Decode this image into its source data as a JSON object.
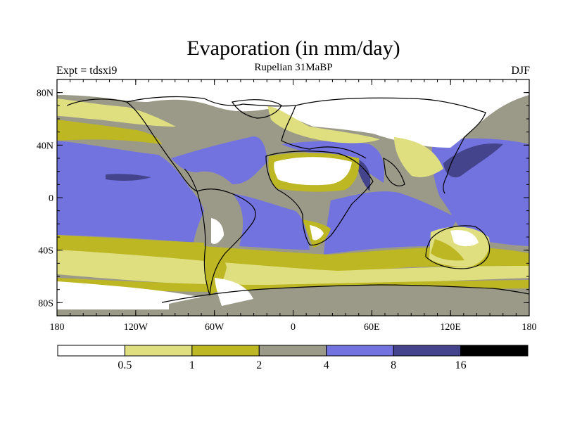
{
  "header": {
    "title": "Evaporation (in mm/day)",
    "subtitle": "Rupelian  31MaBP",
    "experiment": "Expt = tdsxi9",
    "season": "DJF"
  },
  "map": {
    "variable": "evaporation",
    "units": "mm/day",
    "lat_ticks": [
      "80N",
      "40N",
      "0",
      "40S",
      "80S"
    ],
    "lat_values": [
      80,
      40,
      0,
      -40,
      -80
    ],
    "lon_ticks": [
      "180",
      "120W",
      "60W",
      "0",
      "60E",
      "120E",
      "180"
    ],
    "lon_values": [
      -180,
      -120,
      -60,
      0,
      60,
      120,
      180
    ],
    "lat_range": [
      -90,
      90
    ],
    "lon_range": [
      -180,
      180
    ]
  },
  "colorbar": {
    "labels": [
      "0.5",
      "1",
      "2",
      "4",
      "8",
      "16"
    ],
    "levels": [
      0.5,
      1,
      2,
      4,
      8,
      16
    ],
    "colors": [
      "#ffffff",
      "#e0df80",
      "#bcb722",
      "#9b9a88",
      "#7373e0",
      "#44448c",
      "#000000"
    ]
  },
  "chart_data": {
    "type": "heatmap",
    "title": "Evaporation (in mm/day)",
    "subtitle": "Rupelian  31MaBP",
    "x_ticks": [
      "180",
      "120W",
      "60W",
      "0",
      "60E",
      "120E",
      "180"
    ],
    "y_ticks": [
      "80N",
      "40N",
      "0",
      "40S",
      "80S"
    ],
    "xlim": [
      -180,
      180
    ],
    "ylim": [
      -90,
      90
    ],
    "color_levels": [
      0.5,
      1,
      2,
      4,
      8,
      16
    ]
  }
}
